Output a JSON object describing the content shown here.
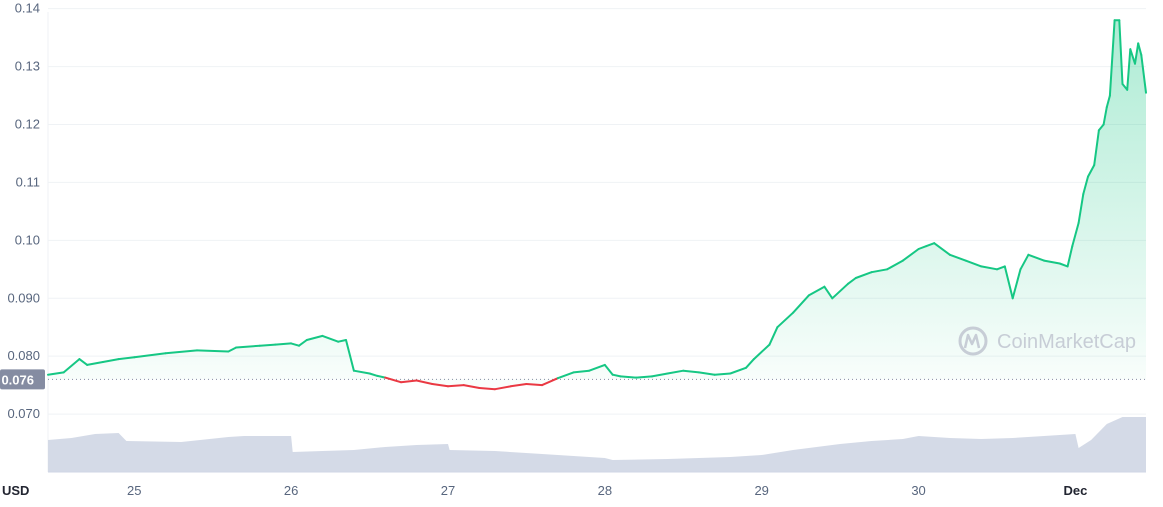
{
  "chart_data": {
    "type": "area",
    "currency_label": "USD",
    "watermark": "CoinMarketCap",
    "ylim": [
      0.06,
      0.1415
    ],
    "y_ticks": [
      {
        "value": 0.14,
        "label": "0.14"
      },
      {
        "value": 0.13,
        "label": "0.13"
      },
      {
        "value": 0.12,
        "label": "0.12"
      },
      {
        "value": 0.11,
        "label": "0.11"
      },
      {
        "value": 0.1,
        "label": "0.10"
      },
      {
        "value": 0.09,
        "label": "0.090"
      },
      {
        "value": 0.08,
        "label": "0.080"
      },
      {
        "value": 0.07,
        "label": "0.070"
      }
    ],
    "x_ticks": [
      {
        "day": 25,
        "label": "25",
        "bold": false
      },
      {
        "day": 26,
        "label": "26",
        "bold": false
      },
      {
        "day": 27,
        "label": "27",
        "bold": false
      },
      {
        "day": 28,
        "label": "28",
        "bold": false
      },
      {
        "day": 29,
        "label": "29",
        "bold": false
      },
      {
        "day": 30,
        "label": "30",
        "bold": false
      },
      {
        "day": 31,
        "label": "Dec",
        "bold": true
      }
    ],
    "xlim": [
      24.45,
      31.45
    ],
    "reference_price": {
      "value": 0.076,
      "label": "0.076"
    },
    "colors": {
      "up": "#16c784",
      "down": "#ea3943",
      "area": "#16c784",
      "volume": "#cfd6e4",
      "reference": "#858ca2"
    },
    "price_series": {
      "x": [
        24.45,
        24.55,
        24.65,
        24.7,
        24.8,
        24.9,
        25.0,
        25.2,
        25.4,
        25.6,
        25.65,
        25.8,
        25.9,
        26.0,
        26.05,
        26.1,
        26.2,
        26.3,
        26.35,
        26.4,
        26.5,
        26.55,
        26.6,
        26.7,
        26.8,
        26.9,
        27.0,
        27.1,
        27.2,
        27.3,
        27.4,
        27.5,
        27.6,
        27.7,
        27.8,
        27.9,
        28.0,
        28.05,
        28.1,
        28.2,
        28.3,
        28.4,
        28.5,
        28.6,
        28.7,
        28.8,
        28.9,
        28.95,
        29.05,
        29.1,
        29.2,
        29.3,
        29.4,
        29.45,
        29.55,
        29.6,
        29.7,
        29.8,
        29.9,
        30.0,
        30.05,
        30.1,
        30.2,
        30.3,
        30.4,
        30.5,
        30.55,
        30.6,
        30.65,
        30.7,
        30.8,
        30.9,
        30.95,
        30.98,
        31.02,
        31.05,
        31.08,
        31.12,
        31.15,
        31.18,
        31.2,
        31.22,
        31.25,
        31.28,
        31.3,
        31.33,
        31.35,
        31.38,
        31.4,
        31.42,
        31.45
      ],
      "y": [
        0.0768,
        0.0772,
        0.0795,
        0.0785,
        0.079,
        0.0795,
        0.0798,
        0.0805,
        0.081,
        0.0808,
        0.0815,
        0.0818,
        0.082,
        0.0822,
        0.0818,
        0.0828,
        0.0835,
        0.0825,
        0.0828,
        0.0775,
        0.077,
        0.0766,
        0.0763,
        0.0755,
        0.0758,
        0.0752,
        0.0748,
        0.075,
        0.0745,
        0.0743,
        0.0748,
        0.0752,
        0.075,
        0.0762,
        0.0772,
        0.0775,
        0.0785,
        0.0768,
        0.0765,
        0.0763,
        0.0765,
        0.077,
        0.0775,
        0.0772,
        0.0768,
        0.077,
        0.078,
        0.0795,
        0.082,
        0.085,
        0.0875,
        0.0905,
        0.092,
        0.09,
        0.0925,
        0.0935,
        0.0945,
        0.095,
        0.0965,
        0.0985,
        0.099,
        0.0995,
        0.0975,
        0.0965,
        0.0955,
        0.095,
        0.0955,
        0.09,
        0.095,
        0.0975,
        0.0965,
        0.096,
        0.0955,
        0.099,
        0.103,
        0.108,
        0.111,
        0.113,
        0.119,
        0.12,
        0.123,
        0.125,
        0.138,
        0.138,
        0.127,
        0.126,
        0.133,
        0.1305,
        0.134,
        0.132,
        0.1255
      ]
    },
    "volume_series": {
      "x": [
        24.45,
        24.6,
        24.75,
        24.9,
        24.95,
        25.3,
        25.6,
        25.7,
        26.0,
        26.01,
        26.2,
        26.4,
        26.6,
        26.8,
        27.0,
        27.01,
        27.3,
        27.6,
        27.8,
        28.0,
        28.05,
        28.4,
        28.8,
        29.0,
        29.2,
        29.4,
        29.5,
        29.7,
        29.9,
        30.0,
        30.2,
        30.4,
        30.6,
        30.8,
        31.0,
        31.02,
        31.1,
        31.2,
        31.3,
        31.45
      ],
      "rel": [
        0.32,
        0.34,
        0.38,
        0.39,
        0.31,
        0.3,
        0.35,
        0.36,
        0.36,
        0.2,
        0.21,
        0.22,
        0.25,
        0.27,
        0.28,
        0.22,
        0.21,
        0.18,
        0.16,
        0.14,
        0.12,
        0.13,
        0.15,
        0.17,
        0.22,
        0.26,
        0.28,
        0.31,
        0.33,
        0.36,
        0.34,
        0.33,
        0.34,
        0.36,
        0.38,
        0.24,
        0.32,
        0.48,
        0.55,
        0.55
      ]
    }
  }
}
